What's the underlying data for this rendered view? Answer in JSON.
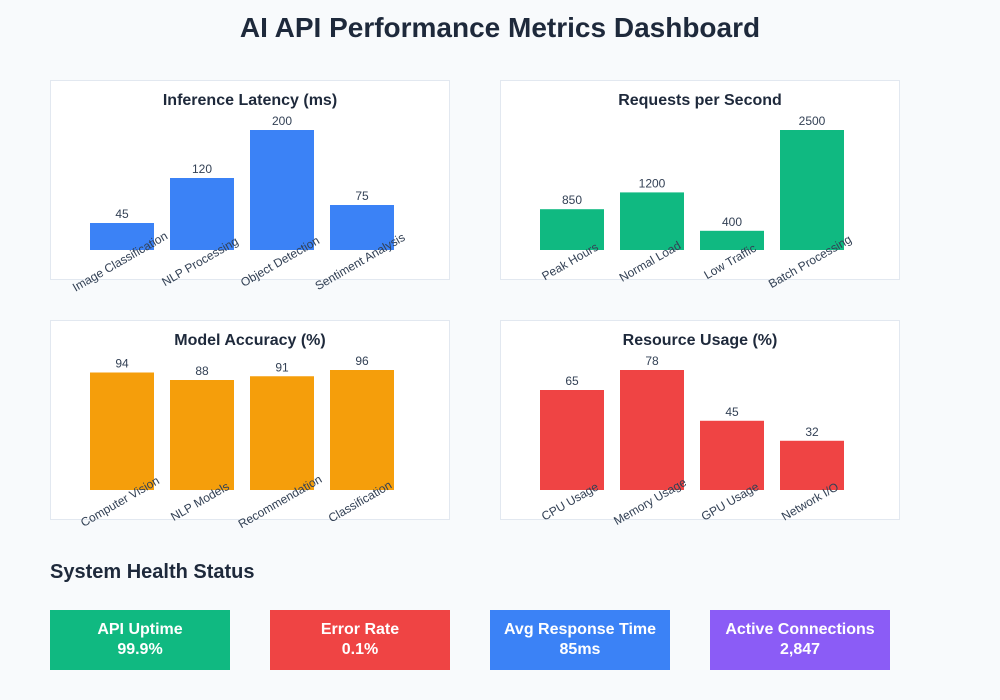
{
  "page_title": "AI API Performance Metrics Dashboard",
  "chart_data": [
    {
      "type": "bar",
      "title": "Inference Latency (ms)",
      "categories": [
        "Image Classification",
        "NLP Processing",
        "Object Detection",
        "Sentiment Analysis"
      ],
      "values": [
        45,
        120,
        200,
        75
      ],
      "color": "#3b82f6",
      "ylim": [
        0,
        200
      ],
      "xlabel": "",
      "ylabel": ""
    },
    {
      "type": "bar",
      "title": "Requests per Second",
      "categories": [
        "Peak Hours",
        "Normal Load",
        "Low Traffic",
        "Batch Processing"
      ],
      "values": [
        850,
        1200,
        400,
        2500
      ],
      "color": "#10b981",
      "ylim": [
        0,
        2500
      ],
      "xlabel": "",
      "ylabel": ""
    },
    {
      "type": "bar",
      "title": "Model Accuracy (%)",
      "categories": [
        "Computer Vision",
        "NLP Models",
        "Recommendation",
        "Classification"
      ],
      "values": [
        94,
        88,
        91,
        96
      ],
      "color": "#f59e0b",
      "ylim": [
        0,
        96
      ],
      "xlabel": "",
      "ylabel": ""
    },
    {
      "type": "bar",
      "title": "Resource Usage (%)",
      "categories": [
        "CPU Usage",
        "Memory Usage",
        "GPU Usage",
        "Network I/O"
      ],
      "values": [
        65,
        78,
        45,
        32
      ],
      "color": "#ef4444",
      "ylim": [
        0,
        78
      ],
      "xlabel": "",
      "ylabel": ""
    }
  ],
  "health": {
    "title": "System Health Status",
    "cards": [
      {
        "label": "API Uptime",
        "value": "99.9%",
        "color": "#10b981"
      },
      {
        "label": "Error Rate",
        "value": "0.1%",
        "color": "#ef4444"
      },
      {
        "label": "Avg Response Time",
        "value": "85ms",
        "color": "#3b82f6"
      },
      {
        "label": "Active Connections",
        "value": "2,847",
        "color": "#8b5cf6"
      }
    ]
  }
}
